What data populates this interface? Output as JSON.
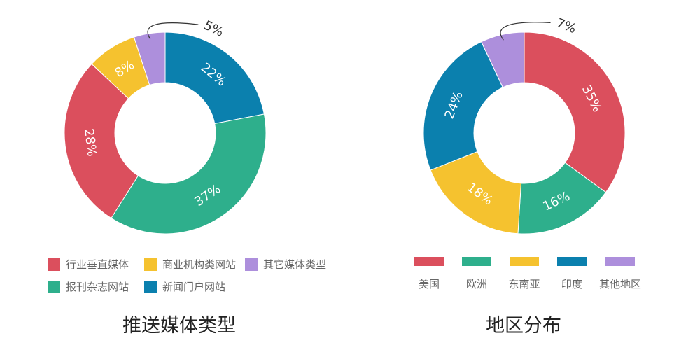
{
  "chart_data": [
    {
      "type": "pie",
      "title": "推送媒体类型",
      "start_category": "新闻门户网站",
      "slices": [
        {
          "category": "新闻门户网站",
          "value": 22,
          "label": "22%",
          "color": "#0b80ae"
        },
        {
          "category": "报刊杂志网站",
          "value": 37,
          "label": "37%",
          "color": "#2eaf8c"
        },
        {
          "category": "行业垂直媒体",
          "value": 28,
          "label": "28%",
          "color": "#db4f5d"
        },
        {
          "category": "商业机构类网站",
          "value": 8,
          "label": "8%",
          "color": "#f5c22f"
        },
        {
          "category": "其它媒体类型",
          "value": 5,
          "label": "5%",
          "color": "#ad8fdc"
        }
      ],
      "legend": {
        "placement": "bottom",
        "order": [
          "行业垂直媒体",
          "商业机构类网站",
          "其它媒体类型",
          "报刊杂志网站",
          "新闻门户网站"
        ]
      }
    },
    {
      "type": "pie",
      "title": "地区分布",
      "start_category": "美国",
      "slices": [
        {
          "category": "美国",
          "value": 35,
          "label": "35%",
          "color": "#db4f5d"
        },
        {
          "category": "欧洲",
          "value": 16,
          "label": "16%",
          "color": "#2eaf8c"
        },
        {
          "category": "东南亚",
          "value": 18,
          "label": "18%",
          "color": "#f5c22f"
        },
        {
          "category": "印度",
          "value": 24,
          "label": "24%",
          "color": "#0b80ae"
        },
        {
          "category": "其他地区",
          "value": 7,
          "label": "7%",
          "color": "#ad8fdc"
        }
      ],
      "legend": {
        "placement": "bottom",
        "order": [
          "美国",
          "欧洲",
          "东南亚",
          "印度",
          "其他地区"
        ]
      }
    }
  ]
}
